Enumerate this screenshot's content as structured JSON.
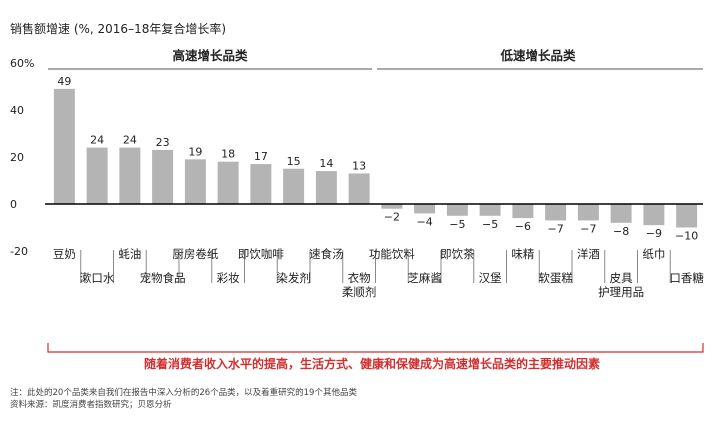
{
  "chart_data": {
    "type": "bar",
    "title": "销售额增速 (%, 2016–18年复合增长率)",
    "yticks": [
      "60%",
      "40",
      "20",
      "0",
      "-20"
    ],
    "ylim": [
      -20,
      60
    ],
    "grid": false,
    "groups": [
      {
        "label": "高速增长品类"
      },
      {
        "label": "低速增长品类"
      }
    ],
    "categories": [
      "豆奶",
      "漱口水",
      "蚝油",
      "宠物食品",
      "厨房卷纸",
      "彩妆",
      "即饮咖啡",
      "染发剂",
      "速食汤",
      "衣物柔顺剂",
      "功能饮料",
      "芝麻酱",
      "即饮茶",
      "汉堡",
      "味精",
      "软蛋糕",
      "洋酒",
      "皮具护理用品",
      "纸巾",
      "口香糖"
    ],
    "category_lines": [
      [
        "豆奶"
      ],
      [
        "漱口水"
      ],
      [
        "蚝油"
      ],
      [
        "宠物食品"
      ],
      [
        "厨房卷纸"
      ],
      [
        "彩妆"
      ],
      [
        "即饮咖啡"
      ],
      [
        "染发剂"
      ],
      [
        "速食汤"
      ],
      [
        "衣物",
        "柔顺剂"
      ],
      [
        "功能饮料"
      ],
      [
        "芝麻酱"
      ],
      [
        "即饮茶"
      ],
      [
        "汉堡"
      ],
      [
        "味精"
      ],
      [
        "软蛋糕"
      ],
      [
        "洋酒"
      ],
      [
        "皮具",
        "护理用品"
      ],
      [
        "纸巾"
      ],
      [
        "口香糖"
      ]
    ],
    "values": [
      49,
      24,
      24,
      23,
      19,
      18,
      17,
      15,
      14,
      13,
      -2,
      -4,
      -5,
      -5,
      -6,
      -7,
      -7,
      -8,
      -9,
      -10
    ],
    "value_labels": [
      "49",
      "24",
      "24",
      "23",
      "19",
      "18",
      "17",
      "15",
      "14",
      "13",
      "−2",
      "−4",
      "−5",
      "−5",
      "−6",
      "−7",
      "−7",
      "−8",
      "−9",
      "−10"
    ],
    "annotation": "随着消费者收入水平的提高，生活方式、健康和保健成为高速增长品类的主要推动因素",
    "footnotes": [
      "注：此处的20个品类来自我们在报告中深入分析的26个品类，以及着重研究的19个其他品类",
      "资料来源：凯度消费者指数研究；贝恩分析"
    ],
    "colors": {
      "bar": "#b4b4b4",
      "axis": "#000000",
      "accent": "#d32f2f",
      "divider": "#555555"
    }
  }
}
